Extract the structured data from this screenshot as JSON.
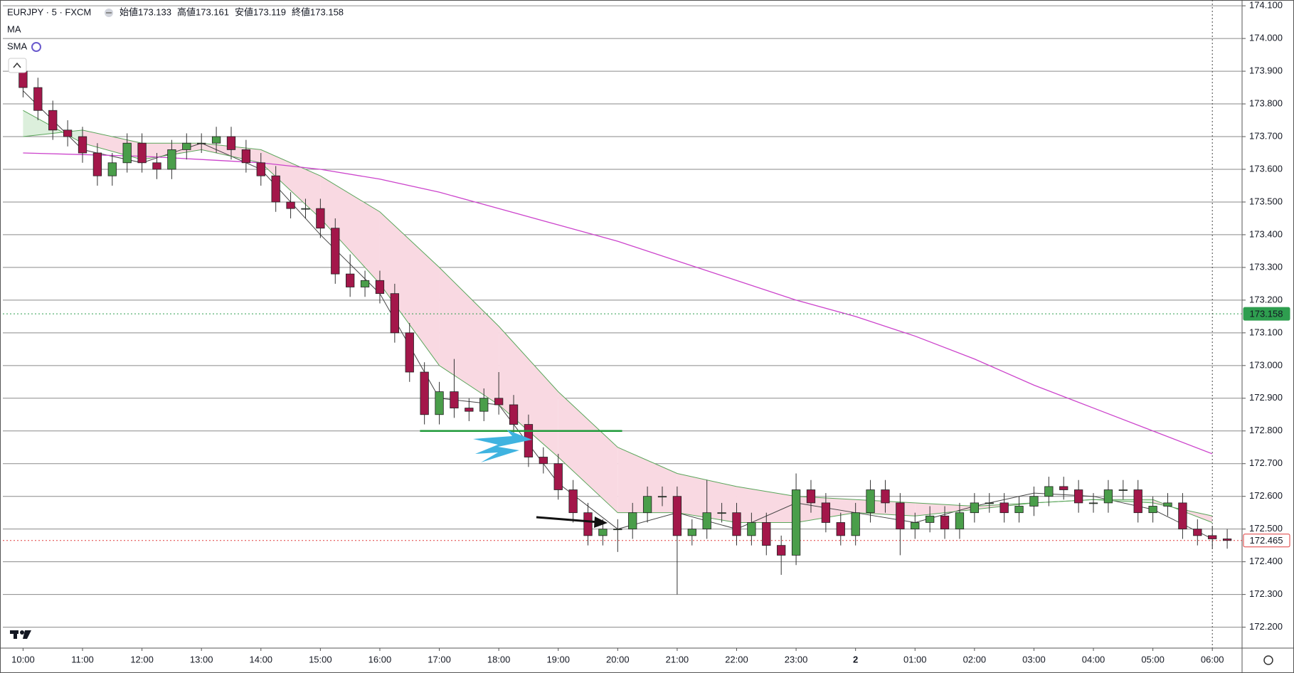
{
  "chart_data": {
    "type": "candlestick",
    "title": "EURJPY · 5 · FXCM",
    "ohlc_labels": [
      "始値173.133",
      "高値173.161",
      "安値173.119",
      "終値173.158"
    ],
    "indicators": [
      "MA",
      "SMA"
    ],
    "up_color": "#4a9e4a",
    "down_color": "#a3174a",
    "xlim": [
      -1.36,
      82
    ],
    "ylim": [
      172.136,
      174.109
    ],
    "xticks": [
      {
        "value": 0,
        "label": "10:00"
      },
      {
        "value": 4,
        "label": "11:00"
      },
      {
        "value": 8,
        "label": "12:00"
      },
      {
        "value": 12,
        "label": "13:00"
      },
      {
        "value": 16,
        "label": "14:00"
      },
      {
        "value": 20,
        "label": "15:00"
      },
      {
        "value": 24,
        "label": "16:00"
      },
      {
        "value": 28,
        "label": "17:00"
      },
      {
        "value": 32,
        "label": "18:00"
      },
      {
        "value": 36,
        "label": "19:00"
      },
      {
        "value": 40,
        "label": "20:00"
      },
      {
        "value": 44,
        "label": "21:00"
      },
      {
        "value": 48,
        "label": "22:00"
      },
      {
        "value": 52,
        "label": "23:00"
      },
      {
        "value": 56,
        "label": "2"
      },
      {
        "value": 60,
        "label": "01:00"
      },
      {
        "value": 64,
        "label": "02:00"
      },
      {
        "value": 68,
        "label": "03:00"
      },
      {
        "value": 72,
        "label": "04:00"
      },
      {
        "value": 76,
        "label": "05:00"
      },
      {
        "value": 80,
        "label": "06:00"
      }
    ],
    "yticks": [
      {
        "value": 172.2,
        "label": "172.200"
      },
      {
        "value": 172.3,
        "label": "172.300"
      },
      {
        "value": 172.4,
        "label": "172.400"
      },
      {
        "value": 172.5,
        "label": "172.500"
      },
      {
        "value": 172.6,
        "label": "172.600"
      },
      {
        "value": 172.7,
        "label": "172.700"
      },
      {
        "value": 172.8,
        "label": "172.800"
      },
      {
        "value": 172.9,
        "label": "172.900"
      },
      {
        "value": 173.0,
        "label": "173.000"
      },
      {
        "value": 173.1,
        "label": "173.100"
      },
      {
        "value": 173.2,
        "label": "173.200"
      },
      {
        "value": 173.3,
        "label": "173.300"
      },
      {
        "value": 173.4,
        "label": "173.400"
      },
      {
        "value": 173.5,
        "label": "173.500"
      },
      {
        "value": 173.6,
        "label": "173.600"
      },
      {
        "value": 173.7,
        "label": "173.700"
      },
      {
        "value": 173.8,
        "label": "173.800"
      },
      {
        "value": 173.9,
        "label": "173.900"
      },
      {
        "value": 174.0,
        "label": "174.000"
      },
      {
        "value": 174.1,
        "label": "174.100"
      }
    ],
    "grid": true,
    "open": [
      173.9,
      173.85,
      173.78,
      173.72,
      173.7,
      173.65,
      173.58,
      173.62,
      173.68,
      173.62,
      173.6,
      173.66,
      173.68,
      173.68,
      173.7,
      173.66,
      173.62,
      173.58,
      173.5,
      173.48,
      173.48,
      173.42,
      173.28,
      173.24,
      173.26,
      173.22,
      173.1,
      172.98,
      172.85,
      172.92,
      172.87,
      172.86,
      172.9,
      172.88,
      172.82,
      172.72,
      172.7,
      172.62,
      172.55,
      172.48,
      172.5,
      172.5,
      172.55,
      172.6,
      172.6,
      172.48,
      172.5,
      172.55,
      172.55,
      172.48,
      172.52,
      172.45,
      172.42,
      172.62,
      172.58,
      172.52,
      172.48,
      172.55,
      172.62,
      172.58,
      172.5,
      172.52,
      172.54,
      172.5,
      172.55,
      172.58,
      172.58,
      172.55,
      172.57,
      172.6,
      172.63,
      172.62,
      172.58,
      172.58,
      172.62,
      172.62,
      172.55,
      172.57,
      172.58,
      172.5,
      172.48,
      172.47
    ],
    "high": [
      173.93,
      173.88,
      173.81,
      173.75,
      173.73,
      173.68,
      173.65,
      173.71,
      173.71,
      173.65,
      173.69,
      173.71,
      173.71,
      173.73,
      173.73,
      173.69,
      173.65,
      173.61,
      173.53,
      173.51,
      173.51,
      173.45,
      173.34,
      173.29,
      173.29,
      173.25,
      173.13,
      173.01,
      172.95,
      173.02,
      172.9,
      172.93,
      172.98,
      172.91,
      172.85,
      172.75,
      172.73,
      172.65,
      172.58,
      172.53,
      172.53,
      172.58,
      172.63,
      172.63,
      172.63,
      172.53,
      172.65,
      172.58,
      172.58,
      172.55,
      172.55,
      172.48,
      172.67,
      172.65,
      172.61,
      172.55,
      172.58,
      172.65,
      172.65,
      172.61,
      172.55,
      172.57,
      172.57,
      172.58,
      172.61,
      172.61,
      172.61,
      172.6,
      172.63,
      172.66,
      172.66,
      172.65,
      172.61,
      172.65,
      172.65,
      172.65,
      172.6,
      172.61,
      172.61,
      172.53,
      172.51,
      172.5
    ],
    "low": [
      173.82,
      173.75,
      173.69,
      173.67,
      173.62,
      173.55,
      173.55,
      173.59,
      173.59,
      173.57,
      173.57,
      173.63,
      173.65,
      173.65,
      173.63,
      173.59,
      173.55,
      173.47,
      173.45,
      173.45,
      173.39,
      173.25,
      173.21,
      173.21,
      173.19,
      173.07,
      172.95,
      172.82,
      172.82,
      172.84,
      172.83,
      172.83,
      172.85,
      172.79,
      172.69,
      172.67,
      172.59,
      172.52,
      172.45,
      172.45,
      172.43,
      172.47,
      172.52,
      172.57,
      172.3,
      172.45,
      172.47,
      172.52,
      172.45,
      172.45,
      172.42,
      172.36,
      172.39,
      172.55,
      172.49,
      172.45,
      172.45,
      172.52,
      172.55,
      172.42,
      172.47,
      172.49,
      172.47,
      172.47,
      172.52,
      172.55,
      172.52,
      172.52,
      172.54,
      172.57,
      172.59,
      172.55,
      172.55,
      172.55,
      172.59,
      172.52,
      172.52,
      172.54,
      172.47,
      172.45,
      172.44,
      172.44
    ],
    "close": [
      173.85,
      173.78,
      173.72,
      173.7,
      173.65,
      173.58,
      173.62,
      173.68,
      173.62,
      173.6,
      173.66,
      173.68,
      173.68,
      173.7,
      173.66,
      173.62,
      173.58,
      173.5,
      173.48,
      173.48,
      173.42,
      173.28,
      173.24,
      173.26,
      173.22,
      173.1,
      172.98,
      172.85,
      172.92,
      172.87,
      172.86,
      172.9,
      172.88,
      172.82,
      172.72,
      172.7,
      172.62,
      172.55,
      172.48,
      172.5,
      172.5,
      172.55,
      172.6,
      172.6,
      172.48,
      172.5,
      172.55,
      172.55,
      172.48,
      172.52,
      172.45,
      172.42,
      172.62,
      172.58,
      172.52,
      172.48,
      172.55,
      172.62,
      172.58,
      172.5,
      172.52,
      172.54,
      172.5,
      172.55,
      172.58,
      172.58,
      172.55,
      172.57,
      172.6,
      172.63,
      172.62,
      172.58,
      172.58,
      172.62,
      172.62,
      172.55,
      172.57,
      172.58,
      172.5,
      172.48,
      172.47,
      172.465
    ],
    "series": [
      {
        "color": "#444444",
        "x": [
          0,
          4,
          8,
          12,
          16,
          20,
          24,
          28,
          32,
          36,
          40,
          44,
          48,
          52,
          56,
          60,
          64,
          68,
          72,
          76,
          80
        ],
        "values": [
          173.84,
          173.66,
          173.62,
          173.68,
          173.6,
          173.4,
          173.22,
          172.9,
          172.88,
          172.64,
          172.5,
          172.55,
          172.5,
          172.58,
          172.55,
          172.52,
          172.57,
          172.61,
          172.6,
          172.56,
          172.47
        ]
      },
      {
        "color": "#5aa55a",
        "x": [
          0,
          4,
          8,
          12,
          16,
          20,
          24,
          28,
          32,
          36,
          40,
          44,
          48,
          52,
          56,
          60,
          64,
          68,
          72,
          76,
          80
        ],
        "values": [
          173.78,
          173.68,
          173.63,
          173.66,
          173.62,
          173.45,
          173.25,
          173.0,
          172.88,
          172.72,
          172.55,
          172.55,
          172.52,
          172.52,
          172.55,
          172.54,
          172.56,
          172.58,
          172.59,
          172.59,
          172.52
        ]
      },
      {
        "color": "#5aa55a",
        "x": [
          0,
          4,
          8,
          12,
          16,
          20,
          24,
          28,
          32,
          36,
          40,
          44,
          48,
          52,
          56,
          60,
          64,
          68,
          72,
          76,
          80
        ],
        "values": [
          173.7,
          173.72,
          173.68,
          173.68,
          173.66,
          173.58,
          173.47,
          173.3,
          173.12,
          172.92,
          172.75,
          172.67,
          172.63,
          172.6,
          172.59,
          172.58,
          172.57,
          172.58,
          172.59,
          172.58,
          172.54
        ]
      },
      {
        "color": "#cc44cc",
        "x": [
          0,
          4,
          8,
          12,
          16,
          20,
          24,
          28,
          32,
          36,
          40,
          44,
          48,
          52,
          56,
          60,
          64,
          68,
          72,
          76,
          80
        ],
        "values": [
          173.65,
          173.645,
          173.64,
          173.63,
          173.62,
          173.6,
          173.57,
          173.53,
          173.48,
          173.43,
          173.38,
          173.32,
          173.26,
          173.2,
          173.15,
          173.09,
          173.02,
          172.94,
          172.87,
          172.8,
          172.73
        ]
      }
    ],
    "band_colors": {
      "down": "#f9d9e2",
      "up": "#dcefdc"
    },
    "level": {
      "value": 172.8,
      "x": [
        26.7,
        40.3
      ],
      "color": "#1f9a3a"
    },
    "price_lines": [
      {
        "value": 173.158,
        "color": "#2e9e4f"
      },
      {
        "value": 172.465,
        "color": "#e03c3c"
      }
    ],
    "crosshair_x": 80
  }
}
